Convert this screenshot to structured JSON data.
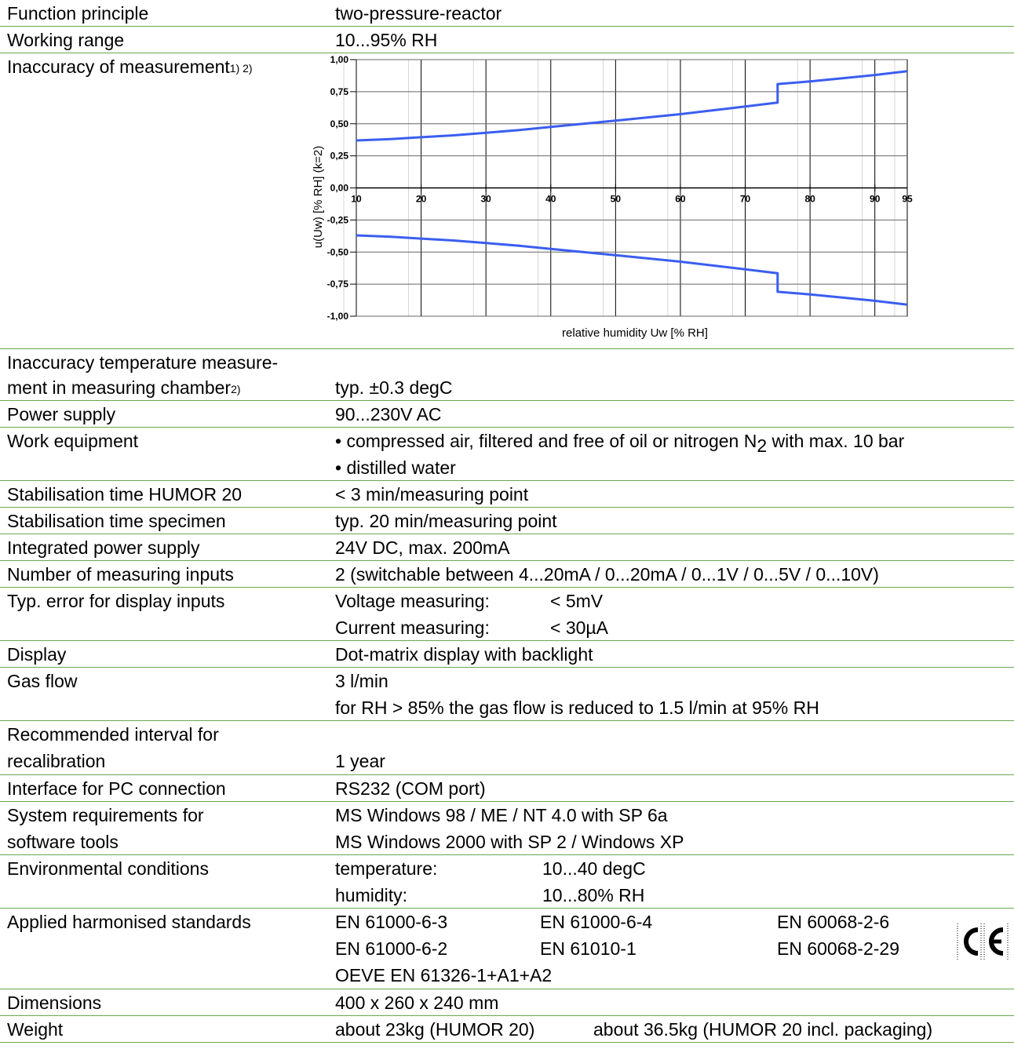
{
  "rows": {
    "function_principle": {
      "label": "Function principle",
      "value": "two-pressure-reactor"
    },
    "working_range": {
      "label": "Working range",
      "value": "10...95% RH"
    },
    "inaccuracy": {
      "label": "Inaccuracy of measurement",
      "sup": "1) 2)"
    },
    "temp_inaccuracy": {
      "label_line1": "Inaccuracy temperature measure-",
      "label_line2": "ment in measuring chamber",
      "sup": "2)",
      "value": "typ. ±0.3 degC"
    },
    "power_supply": {
      "label": "Power supply",
      "value": "90...230V AC"
    },
    "work_equipment": {
      "label": "Work equipment",
      "value1": "• compressed air, filtered and free of oil or nitrogen N",
      "value1_sub": "2",
      "value1_tail": " with max. 10 bar",
      "value2": "• distilled water"
    },
    "stab_humor": {
      "label": "Stabilisation time HUMOR 20",
      "value": "< 3 min/measuring point"
    },
    "stab_specimen": {
      "label": "Stabilisation time specimen",
      "value": "typ. 20 min/measuring point"
    },
    "integrated_power": {
      "label": "Integrated power supply",
      "value": "24V DC, max. 200mA"
    },
    "inputs": {
      "label": "Number of measuring inputs",
      "value": "2 (switchable between 4...20mA / 0...20mA / 0...1V / 0...5V / 0...10V)"
    },
    "typ_error": {
      "label": "Typ. error for display inputs",
      "k1": "Voltage measuring:",
      "v1": "< 5mV",
      "k2": "Current measuring:",
      "v2": "< 30µA"
    },
    "display": {
      "label": "Display",
      "value": "Dot-matrix display with backlight"
    },
    "gas_flow": {
      "label": "Gas flow",
      "value1": "3 l/min",
      "value2": "for RH > 85% the gas flow is reduced to 1.5 l/min at 95% RH"
    },
    "recalibration": {
      "label_line1": "Recommended interval for",
      "label_line2": "recalibration",
      "value": "1 year"
    },
    "interface": {
      "label": "Interface for PC connection",
      "value": "RS232 (COM port)"
    },
    "system_req": {
      "label_line1": "System requirements for",
      "label_line2": "software tools",
      "value1": "MS Windows 98 / ME / NT 4.0 with SP 6a",
      "value2": "MS Windows 2000 with SP 2 / Windows XP"
    },
    "environment": {
      "label": "Environmental conditions",
      "k1": "temperature:",
      "v1": "10...40 degC",
      "k2": "humidity:",
      "v2": "10...80% RH"
    },
    "standards": {
      "label": "Applied harmonised standards",
      "r1": [
        "EN 61000-6-3",
        "EN 61000-6-4",
        "EN 60068-2-6"
      ],
      "r2": [
        "EN 61000-6-2",
        "EN 61010-1",
        "EN 60068-2-29"
      ],
      "r3": "OEVE EN 61326-1+A1+A2",
      "mark": "CE"
    },
    "dimensions": {
      "label": "Dimensions",
      "value": "400 x 260 x 240 mm"
    },
    "weight": {
      "label": "Weight",
      "value1": "about 23kg (HUMOR 20)",
      "value2": "about 36.5kg (HUMOR 20 incl. packaging)"
    }
  },
  "chart_data": {
    "type": "line",
    "xlabel": "relative humidity Uw [% RH]",
    "ylabel": "u(Uw) [% RH] (k=2)",
    "xlim": [
      10,
      95
    ],
    "ylim": [
      -1.0,
      1.0
    ],
    "x_ticks": [
      "10",
      "20",
      "30",
      "40",
      "50",
      "60",
      "70",
      "80",
      "90",
      "95"
    ],
    "y_ticks": [
      "1,00",
      "0,75",
      "0,50",
      "0,25",
      "0,00",
      "-0,25",
      "-0,50",
      "-0,75",
      "-1,00"
    ],
    "grid": true,
    "series": [
      {
        "x": [
          10,
          15,
          20,
          25,
          30,
          35,
          40,
          45,
          50,
          55,
          60,
          65,
          70,
          75,
          75,
          80,
          85,
          90,
          95
        ],
        "values": [
          0.37,
          0.38,
          0.395,
          0.41,
          0.43,
          0.45,
          0.475,
          0.5,
          0.525,
          0.55,
          0.575,
          0.605,
          0.635,
          0.665,
          0.81,
          0.83,
          0.855,
          0.88,
          0.91
        ]
      },
      {
        "x": [
          10,
          15,
          20,
          25,
          30,
          35,
          40,
          45,
          50,
          55,
          60,
          65,
          70,
          75,
          75,
          80,
          85,
          90,
          95
        ],
        "values": [
          -0.37,
          -0.38,
          -0.395,
          -0.41,
          -0.43,
          -0.45,
          -0.475,
          -0.5,
          -0.525,
          -0.55,
          -0.575,
          -0.605,
          -0.635,
          -0.665,
          -0.81,
          -0.83,
          -0.855,
          -0.88,
          -0.91
        ]
      }
    ],
    "line_color": "#3a5ef0"
  }
}
